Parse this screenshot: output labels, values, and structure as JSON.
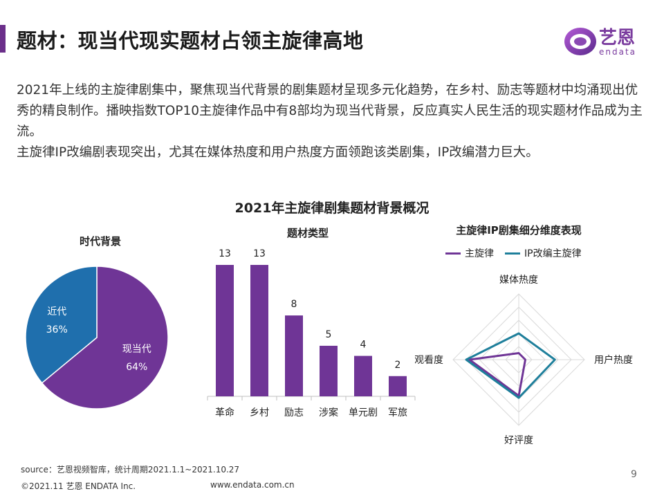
{
  "header": {
    "title": "题材：现当代现实题材占领主旋律高地",
    "logo_cn": "艺恩",
    "logo_en": "endata"
  },
  "intro": {
    "p1": "2021年上线的主旋律剧集中，聚焦现当代背景的剧集题材呈现多元化趋势，在乡村、励志等题材中均涌现出优秀的精良制作。播映指数TOP10主旋律作品中有8部均为现当代背景，反应真实人民生活的现实题材作品成为主流。",
    "p2": "主旋律IP改编剧表现突出，尤其在媒体热度和用户热度方面领跑该类剧集，IP改编潜力巨大。"
  },
  "colors": {
    "accent": "#6b2f8a",
    "purple": "#6f3596",
    "blue": "#1f6fad",
    "radar_blue": "#1e7f9b"
  },
  "chart_title": "2021年主旋律剧集题材背景概况",
  "chart_data": [
    {
      "type": "pie",
      "title": "时代背景",
      "labels": [
        "现当代",
        "近代"
      ],
      "values": [
        64,
        36
      ],
      "value_labels": [
        "64%",
        "36%"
      ],
      "colors": [
        "#6f3596",
        "#1f6fad"
      ]
    },
    {
      "type": "bar",
      "title": "题材类型",
      "categories": [
        "革命",
        "乡村",
        "励志",
        "涉案",
        "单元剧",
        "军旅"
      ],
      "values": [
        13,
        13,
        8,
        5,
        4,
        2
      ],
      "color": "#6f3596"
    },
    {
      "type": "radar",
      "title": "主旋律IP剧集细分维度表现",
      "axes": [
        "媒体热度",
        "用户热度",
        "好评度",
        "观看度"
      ],
      "series": [
        {
          "name": "主旋律",
          "values": [
            0.1,
            0.1,
            0.55,
            0.75
          ],
          "color": "#6f3596"
        },
        {
          "name": "IP改编主旋律",
          "values": [
            0.4,
            0.55,
            0.58,
            0.8
          ],
          "color": "#1e7f9b"
        }
      ]
    }
  ],
  "footer": {
    "source": "source：艺恩视频智库，统计周期2021.1.1~2021.10.27",
    "copyright": "©2021.11 艺恩 ENDATA Inc.",
    "website": "www.endata.com.cn",
    "page": "9"
  }
}
